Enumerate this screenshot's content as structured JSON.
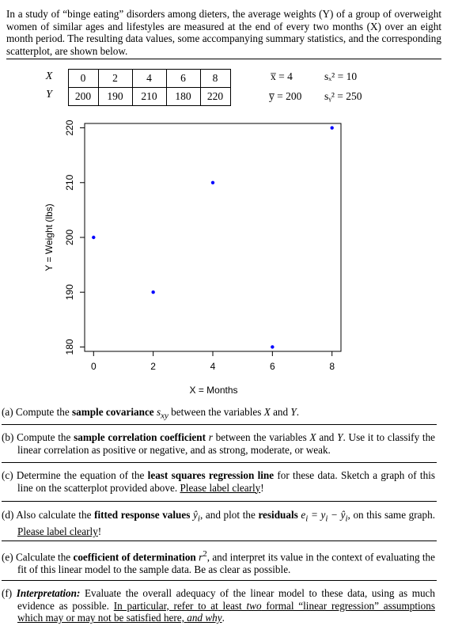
{
  "intro": "In a study of “binge eating” disorders among dieters, the average weights (Y) of a group of overweight women of similar ages and lifestyles are measured at the end of every two months (X) over an eight month period. The resulting data values, some accompanying summary statistics, and the corresponding scatterplot, are shown below.",
  "table": {
    "x_label": "X",
    "y_label": "Y",
    "x_values": [
      "0",
      "2",
      "4",
      "6",
      "8"
    ],
    "y_values": [
      "200",
      "190",
      "210",
      "180",
      "220"
    ]
  },
  "stats": {
    "xbar": "x̅ = 4",
    "ybar": "y̅ = 200",
    "sx2": "sₓ² = 10",
    "sy2": "sᵧ² = 250"
  },
  "chart_data": {
    "type": "scatter",
    "title": "",
    "xlabel": "X = Months",
    "ylabel": "Y = Weight (lbs)",
    "x": [
      0,
      2,
      4,
      6,
      8
    ],
    "y": [
      200,
      190,
      210,
      180,
      220
    ],
    "x_ticks": [
      "0",
      "2",
      "4",
      "6",
      "8"
    ],
    "y_ticks": [
      "180",
      "190",
      "200",
      "210",
      "220"
    ],
    "xlim": [
      -0.3,
      8.3
    ],
    "ylim": [
      179.2,
      220.8
    ],
    "point_color": "#0000ff",
    "grid": false,
    "legend": "none"
  },
  "questions": [
    {
      "id": "a",
      "parts": [
        "(a) Compute the ",
        "sample covariance",
        " s",
        "xy",
        " between the variables ",
        "X",
        " and ",
        "Y",
        "."
      ]
    },
    {
      "id": "b",
      "parts": [
        "(b) Compute the ",
        "sample correlation coefficient",
        " r",
        " between the variables ",
        "X",
        " and ",
        "Y",
        ". Use it to classify the linear correlation as positive or negative, and as strong, moderate, or weak."
      ]
    },
    {
      "id": "c",
      "parts": [
        "(c) Determine the equation of the ",
        "least squares regression line",
        " for these data. Sketch a graph of this line on the scatterplot provided above. ",
        "Please label clearly",
        "!"
      ]
    },
    {
      "id": "d",
      "parts": [
        "(d) Also calculate the ",
        "fitted response values",
        " ŷ",
        "i",
        ", and plot the ",
        "residuals",
        " e",
        "i",
        " = y",
        "i",
        " − ŷ",
        "i",
        ", on this same graph. ",
        "Please label clearly",
        "!"
      ]
    },
    {
      "id": "e",
      "parts": [
        "(e) Calculate the ",
        "coefficient of determination",
        " r",
        "2",
        ", and interpret its value in the context of evaluating the fit of this linear model to the sample data. Be as clear as possible."
      ]
    },
    {
      "id": "f",
      "parts": [
        "(f) ",
        "Interpretation:",
        " Evaluate the overall adequacy of the linear model to these data, using as much evidence as possible. ",
        "In particular, refer to at least ",
        "two",
        " formal “linear regression” assumptions which may or may not be satisfied here, ",
        "and why",
        "."
      ]
    }
  ]
}
